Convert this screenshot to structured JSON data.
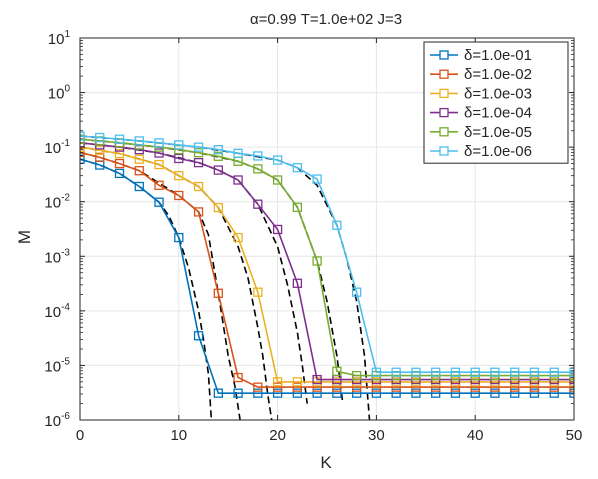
{
  "chart_data": {
    "type": "line",
    "title": "α=0.99   T=1.0e+02   J=3",
    "xlabel": "K",
    "ylabel": "M",
    "xlim": [
      0,
      50
    ],
    "ylim_log10": [
      -6,
      1
    ],
    "yscale": "log",
    "grid": true,
    "legend_position": "top-right",
    "x_ticks": [
      "0",
      "10",
      "20",
      "30",
      "40",
      "50"
    ],
    "y_ticks": [
      {
        "base": "10",
        "exp": "1"
      },
      {
        "base": "10",
        "exp": "0"
      },
      {
        "base": "10",
        "exp": "-1"
      },
      {
        "base": "10",
        "exp": "-2"
      },
      {
        "base": "10",
        "exp": "-3"
      },
      {
        "base": "10",
        "exp": "-4"
      },
      {
        "base": "10",
        "exp": "-5"
      },
      {
        "base": "10",
        "exp": "-6"
      }
    ],
    "series": [
      {
        "name": "δ=1.0e-01",
        "color": "#0072BD",
        "x": [
          0,
          2,
          4,
          6,
          8,
          10,
          12,
          14,
          16,
          18,
          20,
          22,
          24,
          26,
          28,
          30,
          32,
          34,
          36,
          38,
          40,
          42,
          44,
          46,
          48,
          50
        ],
        "y": [
          0.06,
          0.047,
          0.033,
          0.019,
          0.0098,
          0.0022,
          3.5e-05,
          3.1e-06,
          3.1e-06,
          3.1e-06,
          3.1e-06,
          3.1e-06,
          3.1e-06,
          3.1e-06,
          3.1e-06,
          3.1e-06,
          3.1e-06,
          3.1e-06,
          3.1e-06,
          3.1e-06,
          3.1e-06,
          3.1e-06,
          3.1e-06,
          3.1e-06,
          3.1e-06,
          3.1e-06
        ],
        "fit_x": [
          0,
          2,
          4,
          6,
          8,
          9,
          10,
          11,
          12,
          12.5,
          13,
          13.3
        ],
        "fit_y": [
          0.06,
          0.047,
          0.033,
          0.019,
          0.0098,
          0.0055,
          0.0022,
          0.0006,
          0.0001,
          3e-05,
          7e-06,
          1e-06
        ]
      },
      {
        "name": "δ=1.0e-02",
        "color": "#D95319",
        "x": [
          0,
          2,
          4,
          6,
          8,
          10,
          12,
          14,
          16,
          18,
          20,
          22,
          24,
          26,
          28,
          30,
          32,
          34,
          36,
          38,
          40,
          42,
          44,
          46,
          48,
          50
        ],
        "y": [
          0.08,
          0.065,
          0.05,
          0.037,
          0.02,
          0.013,
          0.0065,
          0.00021,
          6e-06,
          4e-06,
          4e-06,
          4e-06,
          4e-06,
          4e-06,
          4e-06,
          4e-06,
          4e-06,
          4e-06,
          4e-06,
          4e-06,
          4e-06,
          4e-06,
          4e-06,
          4e-06,
          4e-06,
          4e-06
        ],
        "fit_x": [
          0,
          2,
          4,
          6,
          8,
          10,
          12,
          13,
          14,
          15,
          15.7,
          16.2
        ],
        "fit_y": [
          0.08,
          0.065,
          0.05,
          0.037,
          0.022,
          0.013,
          0.0065,
          0.0025,
          0.00021,
          1.5e-05,
          4e-06,
          1e-06
        ]
      },
      {
        "name": "δ=1.0e-03",
        "color": "#EDB120",
        "x": [
          0,
          2,
          4,
          6,
          8,
          10,
          12,
          14,
          16,
          18,
          20,
          22,
          24,
          26,
          28,
          30,
          32,
          34,
          36,
          38,
          40,
          42,
          44,
          46,
          48,
          50
        ],
        "y": [
          0.1,
          0.088,
          0.076,
          0.06,
          0.048,
          0.03,
          0.019,
          0.0078,
          0.0022,
          0.00022,
          5e-06,
          5e-06,
          5e-06,
          5e-06,
          5e-06,
          5e-06,
          5e-06,
          5e-06,
          5e-06,
          5e-06,
          5e-06,
          5e-06,
          5e-06,
          5e-06,
          5e-06,
          5e-06
        ],
        "fit_x": [
          0,
          4,
          8,
          10,
          12,
          14,
          16,
          17,
          18,
          18.5,
          19,
          19.4
        ],
        "fit_y": [
          0.1,
          0.076,
          0.048,
          0.03,
          0.019,
          0.0078,
          0.0015,
          0.0004,
          5e-05,
          1.5e-05,
          3e-06,
          1e-06
        ]
      },
      {
        "name": "δ=1.0e-04",
        "color": "#7E2F8E",
        "x": [
          0,
          2,
          4,
          6,
          8,
          10,
          12,
          14,
          16,
          18,
          20,
          22,
          24,
          26,
          28,
          30,
          32,
          34,
          36,
          38,
          40,
          42,
          44,
          46,
          48,
          50
        ],
        "y": [
          0.12,
          0.11,
          0.1,
          0.09,
          0.078,
          0.062,
          0.052,
          0.038,
          0.025,
          0.009,
          0.0031,
          0.00032,
          5.5e-06,
          5.5e-06,
          5.5e-06,
          5.5e-06,
          5.5e-06,
          5.5e-06,
          5.5e-06,
          5.5e-06,
          5.5e-06,
          5.5e-06,
          5.5e-06,
          5.5e-06,
          5.5e-06,
          5.5e-06
        ],
        "fit_x": [
          0,
          4,
          8,
          12,
          14,
          16,
          18,
          20,
          21,
          22,
          22.5,
          23
        ],
        "fit_y": [
          0.12,
          0.1,
          0.078,
          0.052,
          0.038,
          0.025,
          0.009,
          0.0015,
          0.0003,
          4e-05,
          1e-05,
          2e-06
        ]
      },
      {
        "name": "δ=1.0e-05",
        "color": "#77AC30",
        "x": [
          0,
          2,
          4,
          6,
          8,
          10,
          12,
          14,
          16,
          18,
          20,
          22,
          24,
          26,
          28,
          30,
          32,
          34,
          36,
          38,
          40,
          42,
          44,
          46,
          48,
          50
        ],
        "y": [
          0.14,
          0.13,
          0.12,
          0.11,
          0.1,
          0.09,
          0.079,
          0.068,
          0.055,
          0.04,
          0.025,
          0.0079,
          0.00082,
          7.8e-06,
          6.5e-06,
          6.5e-06,
          6.5e-06,
          6.5e-06,
          6.5e-06,
          6.5e-06,
          6.5e-06,
          6.5e-06,
          6.5e-06,
          6.5e-06,
          6.5e-06,
          6.5e-06
        ],
        "fit_x": [
          0,
          4,
          8,
          12,
          16,
          18,
          20,
          22,
          24,
          25,
          26,
          26.6
        ],
        "fit_y": [
          0.14,
          0.12,
          0.1,
          0.079,
          0.055,
          0.04,
          0.025,
          0.0079,
          0.00082,
          0.00015,
          1.5e-05,
          2e-06
        ]
      },
      {
        "name": "δ=1.0e-06",
        "color": "#4DBEEE",
        "x": [
          0,
          2,
          4,
          6,
          8,
          10,
          12,
          14,
          16,
          18,
          20,
          22,
          24,
          26,
          28,
          30,
          32,
          34,
          36,
          38,
          40,
          42,
          44,
          46,
          48,
          50
        ],
        "y": [
          0.16,
          0.15,
          0.14,
          0.13,
          0.12,
          0.11,
          0.1,
          0.09,
          0.077,
          0.069,
          0.058,
          0.042,
          0.026,
          0.0037,
          0.00022,
          7.5e-06,
          7.5e-06,
          7.5e-06,
          7.5e-06,
          7.5e-06,
          7.5e-06,
          7.5e-06,
          7.5e-06,
          7.5e-06,
          7.5e-06,
          7.5e-06
        ],
        "fit_x": [
          0,
          6,
          12,
          16,
          20,
          22,
          24,
          26,
          27,
          28,
          28.8,
          29.3
        ],
        "fit_y": [
          0.16,
          0.13,
          0.1,
          0.077,
          0.058,
          0.042,
          0.02,
          0.0037,
          0.0009,
          0.00015,
          1.5e-05,
          1e-06
        ]
      }
    ]
  }
}
